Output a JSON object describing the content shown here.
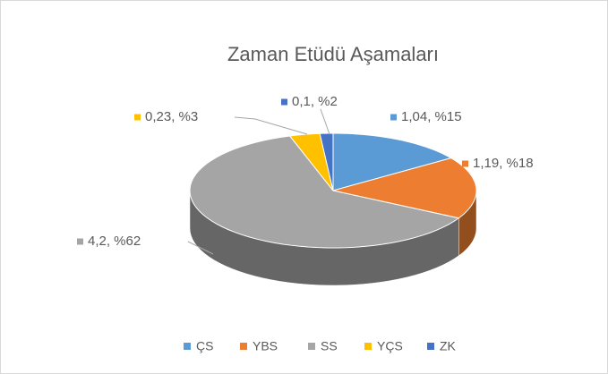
{
  "chart_data": {
    "type": "pie3d",
    "title": "Zaman Etüdü Aşamaları",
    "categories": [
      "ÇS",
      "YBS",
      "SS",
      "YÇS",
      "ZK"
    ],
    "values": [
      1.04,
      1.19,
      4.2,
      0.23,
      0.1
    ],
    "value_labels": [
      "1,04, %15",
      "1,19, %18",
      "4,2, %62",
      "0,23, %3",
      "0,1, %2"
    ],
    "colors": [
      "#5b9bd5",
      "#ed7d31",
      "#a5a5a5",
      "#ffc000",
      "#4472c4"
    ],
    "legend": "bottom"
  }
}
